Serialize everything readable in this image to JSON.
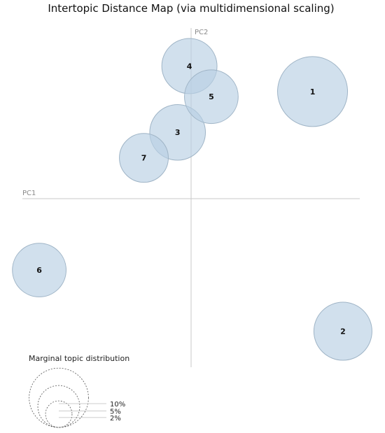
{
  "chart_data": {
    "type": "scatter",
    "title": "Intertopic Distance Map (via multidimensional scaling)",
    "xlabel": "PC1",
    "ylabel": "PC2",
    "grid": false,
    "colors": {
      "bubble_fill": "#b8d0e4",
      "bubble_stroke": "#9fb4c6",
      "axis": "#c8c8c8"
    },
    "points": [
      {
        "label": "1",
        "x": 0.72,
        "y": 0.63,
        "marginal_pct": 9.0
      },
      {
        "label": "2",
        "x": 0.9,
        "y": -0.78,
        "marginal_pct": 6.2
      },
      {
        "label": "3",
        "x": -0.08,
        "y": 0.39,
        "marginal_pct": 5.7
      },
      {
        "label": "4",
        "x": -0.01,
        "y": 0.78,
        "marginal_pct": 5.6
      },
      {
        "label": "5",
        "x": 0.12,
        "y": 0.6,
        "marginal_pct": 5.3
      },
      {
        "label": "6",
        "x": -0.9,
        "y": -0.42,
        "marginal_pct": 5.3
      },
      {
        "label": "7",
        "x": -0.28,
        "y": 0.24,
        "marginal_pct": 4.4
      }
    ],
    "legend": {
      "title": "Marginal topic distribution",
      "items": [
        {
          "label": "2%",
          "value": 2
        },
        {
          "label": "5%",
          "value": 5
        },
        {
          "label": "10%",
          "value": 10
        }
      ]
    }
  }
}
